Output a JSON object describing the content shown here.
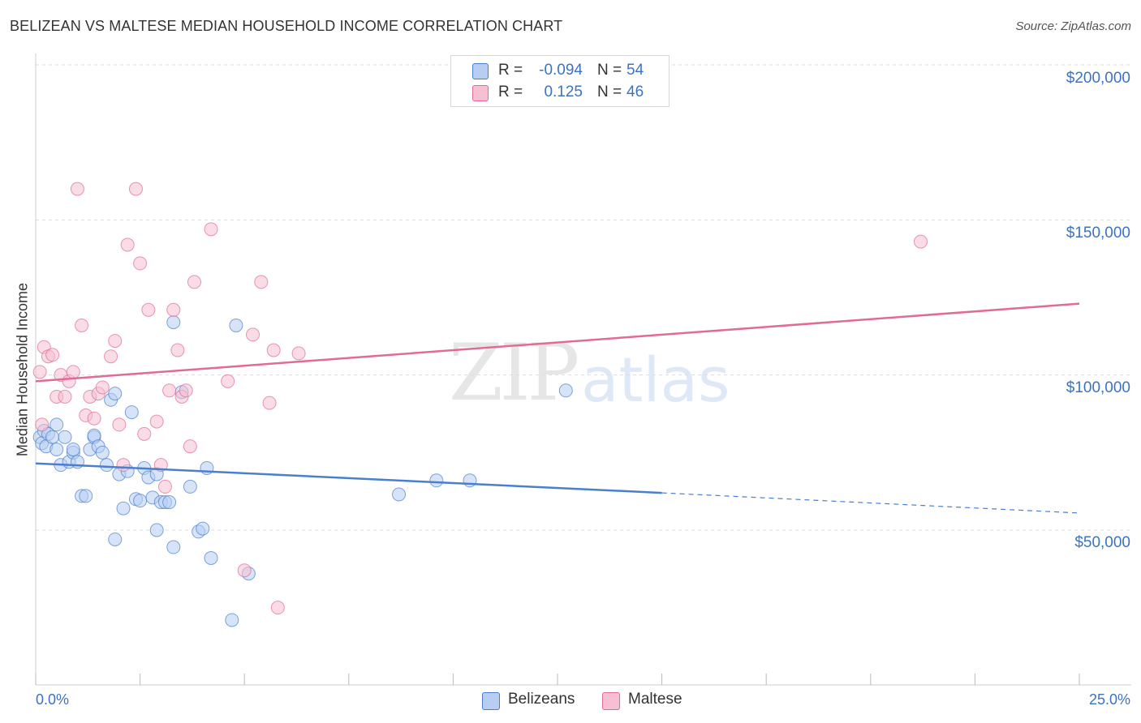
{
  "title": "BELIZEAN VS MALTESE MEDIAN HOUSEHOLD INCOME CORRELATION CHART",
  "source": "Source: ZipAtlas.com",
  "watermark": {
    "zip": "ZIP",
    "atlas": "atlas"
  },
  "colors": {
    "blue": "#4a7fd0",
    "blue_fill": "#b7cef2",
    "pink": "#e06b96",
    "pink_fill": "#f6c0d2",
    "axis_text": "#3b73c4",
    "grid": "#dddddd"
  },
  "legend": {
    "rows": [
      {
        "r_label": "R =",
        "r_value": "-0.094",
        "n_label": "N =",
        "n_value": "54",
        "color": "#b7cef2",
        "border": "#4a7fd0"
      },
      {
        "r_label": "R =",
        "r_value": "0.125",
        "n_label": "N =",
        "n_value": "46",
        "color": "#f6c0d2",
        "border": "#e06b96"
      }
    ]
  },
  "bottom_legend": {
    "belizeans": "Belizeans",
    "maltese": "Maltese"
  },
  "chart_data": {
    "type": "scatter",
    "title": "BELIZEAN VS MALTESE MEDIAN HOUSEHOLD INCOME CORRELATION CHART",
    "ylabel": "Median Household Income",
    "xlabel": "",
    "xlim": [
      0,
      25
    ],
    "ylim": [
      5000,
      210000
    ],
    "x_tick_labels": [
      "0.0%",
      "25.0%"
    ],
    "y_ticks": [
      50000,
      100000,
      150000,
      200000
    ],
    "y_tick_labels": [
      "$50,000",
      "$100,000",
      "$150,000",
      "$200,000"
    ],
    "grid": true,
    "legend_placement": "top-center",
    "series": [
      {
        "name": "Belizeans",
        "color": "#4a7fd0",
        "fill": "#b7cef2",
        "trend": {
          "x0": 0,
          "y0": 71500,
          "x1": 15,
          "y1": 62000,
          "dash_to": 25,
          "dash_y": 55500
        },
        "points": [
          [
            0.1,
            80000
          ],
          [
            0.15,
            78000
          ],
          [
            0.2,
            82000
          ],
          [
            0.25,
            77000
          ],
          [
            0.3,
            81000
          ],
          [
            0.4,
            80000
          ],
          [
            0.5,
            76000
          ],
          [
            0.5,
            84000
          ],
          [
            0.6,
            71000
          ],
          [
            0.7,
            80000
          ],
          [
            0.8,
            72000
          ],
          [
            0.9,
            75000
          ],
          [
            0.9,
            76000
          ],
          [
            1.0,
            72000
          ],
          [
            1.1,
            61000
          ],
          [
            1.2,
            61000
          ],
          [
            1.3,
            76000
          ],
          [
            1.4,
            80000
          ],
          [
            1.4,
            80500
          ],
          [
            1.5,
            77000
          ],
          [
            1.6,
            75000
          ],
          [
            1.7,
            71000
          ],
          [
            1.8,
            92000
          ],
          [
            1.9,
            94000
          ],
          [
            1.9,
            47000
          ],
          [
            2.0,
            68000
          ],
          [
            2.1,
            57000
          ],
          [
            2.2,
            69000
          ],
          [
            2.3,
            88000
          ],
          [
            2.4,
            60000
          ],
          [
            2.5,
            59500
          ],
          [
            2.6,
            70000
          ],
          [
            2.7,
            67000
          ],
          [
            2.8,
            60500
          ],
          [
            2.9,
            68000
          ],
          [
            2.9,
            50000
          ],
          [
            3.0,
            59000
          ],
          [
            3.1,
            59000
          ],
          [
            3.2,
            59000
          ],
          [
            3.3,
            44500
          ],
          [
            3.3,
            117000
          ],
          [
            3.5,
            94500
          ],
          [
            3.7,
            64000
          ],
          [
            3.9,
            49500
          ],
          [
            4.0,
            50500
          ],
          [
            4.1,
            70000
          ],
          [
            4.2,
            41000
          ],
          [
            4.7,
            21000
          ],
          [
            4.8,
            116000
          ],
          [
            5.1,
            36000
          ],
          [
            8.7,
            61500
          ],
          [
            9.6,
            66000
          ],
          [
            10.4,
            66000
          ],
          [
            12.7,
            95000
          ]
        ]
      },
      {
        "name": "Maltese",
        "color": "#e06b96",
        "fill": "#f6c0d2",
        "trend": {
          "x0": 0,
          "y0": 98000,
          "x1": 25,
          "y1": 123000
        },
        "points": [
          [
            0.1,
            101000
          ],
          [
            0.15,
            84000
          ],
          [
            0.2,
            109000
          ],
          [
            0.3,
            106000
          ],
          [
            0.4,
            106500
          ],
          [
            0.5,
            93000
          ],
          [
            0.6,
            100000
          ],
          [
            0.7,
            93000
          ],
          [
            0.8,
            98000
          ],
          [
            0.9,
            101000
          ],
          [
            1.0,
            160000
          ],
          [
            1.1,
            116000
          ],
          [
            1.2,
            87000
          ],
          [
            1.3,
            93000
          ],
          [
            1.4,
            86000
          ],
          [
            1.5,
            94000
          ],
          [
            1.6,
            96000
          ],
          [
            1.8,
            106000
          ],
          [
            1.9,
            111000
          ],
          [
            2.0,
            84000
          ],
          [
            2.1,
            71000
          ],
          [
            2.2,
            142000
          ],
          [
            2.4,
            160000
          ],
          [
            2.5,
            136000
          ],
          [
            2.6,
            81000
          ],
          [
            2.7,
            121000
          ],
          [
            2.9,
            85000
          ],
          [
            3.0,
            71000
          ],
          [
            3.1,
            64000
          ],
          [
            3.2,
            95000
          ],
          [
            3.3,
            121000
          ],
          [
            3.4,
            108000
          ],
          [
            3.5,
            93000
          ],
          [
            3.6,
            95000
          ],
          [
            3.7,
            77000
          ],
          [
            4.2,
            147000
          ],
          [
            4.6,
            98000
          ],
          [
            5.0,
            37000
          ],
          [
            5.2,
            113000
          ],
          [
            5.4,
            130000
          ],
          [
            5.6,
            91000
          ],
          [
            5.7,
            108000
          ],
          [
            5.8,
            25000
          ],
          [
            6.3,
            107000
          ],
          [
            21.2,
            143000
          ],
          [
            3.8,
            130000
          ]
        ]
      }
    ]
  }
}
